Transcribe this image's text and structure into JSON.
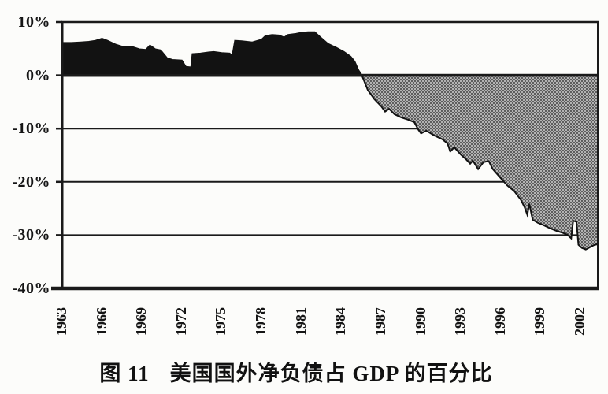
{
  "figure": {
    "caption_prefix": "图 11",
    "caption_title": "美国国外净负债占 GDP 的百分比"
  },
  "chart_data": {
    "type": "area",
    "title": "美国国外净负债占 GDP 的百分比",
    "xlabel": "",
    "ylabel": "",
    "xlim": [
      1963,
      2003.3
    ],
    "ylim": [
      -40,
      10
    ],
    "grid": "horizontal",
    "legend": "none",
    "x_ticks": [
      {
        "year": 1963,
        "label": "1963"
      },
      {
        "year": 1966,
        "label": "1966"
      },
      {
        "year": 1969,
        "label": "1969"
      },
      {
        "year": 1972,
        "label": "1972"
      },
      {
        "year": 1975,
        "label": "1975"
      },
      {
        "year": 1978,
        "label": "1978"
      },
      {
        "year": 1981,
        "label": "1981"
      },
      {
        "year": 1984,
        "label": "1984"
      },
      {
        "year": 1987,
        "label": "1987"
      },
      {
        "year": 1990,
        "label": "1990"
      },
      {
        "year": 1993,
        "label": "1993"
      },
      {
        "year": 1996,
        "label": "1996"
      },
      {
        "year": 1999,
        "label": "1999"
      },
      {
        "year": 2002,
        "label": "2002"
      }
    ],
    "y_ticks": [
      {
        "value": 10,
        "label": "10%"
      },
      {
        "value": 0,
        "label": "0%"
      },
      {
        "value": -10,
        "label": "-10%"
      },
      {
        "value": -20,
        "label": "-20%"
      },
      {
        "value": -30,
        "label": "-30%"
      },
      {
        "value": -40,
        "label": "-40%"
      }
    ],
    "series": [
      {
        "name": "美国国外净负债占GDP百分比",
        "unit": "% of GDP",
        "points": [
          [
            1963,
            6.1
          ],
          [
            1963.7,
            6.1
          ],
          [
            1964.4,
            6.2
          ],
          [
            1965,
            6.3
          ],
          [
            1965.5,
            6.5
          ],
          [
            1966,
            6.9
          ],
          [
            1966.4,
            6.5
          ],
          [
            1967,
            5.8
          ],
          [
            1967.5,
            5.4
          ],
          [
            1968.3,
            5.3
          ],
          [
            1968.8,
            4.9
          ],
          [
            1969.3,
            4.8
          ],
          [
            1969.6,
            5.6
          ],
          [
            1970,
            4.9
          ],
          [
            1970.4,
            4.7
          ],
          [
            1970.9,
            3.2
          ],
          [
            1971.3,
            2.9
          ],
          [
            1972,
            2.8
          ],
          [
            1972.3,
            1.6
          ],
          [
            1972.7,
            1.5
          ],
          [
            1972.8,
            4.0
          ],
          [
            1973.4,
            4.1
          ],
          [
            1974,
            4.3
          ],
          [
            1974.4,
            4.4
          ],
          [
            1975,
            4.2
          ],
          [
            1975.6,
            4.1
          ],
          [
            1975.8,
            3.6
          ],
          [
            1976,
            6.5
          ],
          [
            1976.5,
            6.4
          ],
          [
            1977.3,
            6.2
          ],
          [
            1978,
            6.7
          ],
          [
            1978.3,
            7.4
          ],
          [
            1978.8,
            7.6
          ],
          [
            1979.3,
            7.5
          ],
          [
            1979.7,
            7.1
          ],
          [
            1980,
            7.6
          ],
          [
            1980.6,
            7.8
          ],
          [
            1981,
            8.0
          ],
          [
            1981.5,
            8.1
          ],
          [
            1982,
            8.1
          ],
          [
            1982.4,
            7.2
          ],
          [
            1983,
            5.9
          ],
          [
            1983.6,
            5.2
          ],
          [
            1984.2,
            4.4
          ],
          [
            1984.7,
            3.5
          ],
          [
            1985,
            2.6
          ],
          [
            1985.3,
            0.9
          ],
          [
            1985.55,
            0.0
          ],
          [
            1986,
            -2.8
          ],
          [
            1986.5,
            -4.5
          ],
          [
            1987,
            -5.8
          ],
          [
            1987.3,
            -6.8
          ],
          [
            1987.6,
            -6.3
          ],
          [
            1988,
            -7.3
          ],
          [
            1988.5,
            -7.9
          ],
          [
            1989,
            -8.3
          ],
          [
            1989.5,
            -8.8
          ],
          [
            1989.8,
            -10.2
          ],
          [
            1990,
            -10.9
          ],
          [
            1990.4,
            -10.4
          ],
          [
            1991,
            -11.3
          ],
          [
            1991.6,
            -12.0
          ],
          [
            1992,
            -12.8
          ],
          [
            1992.2,
            -14.3
          ],
          [
            1992.5,
            -13.5
          ],
          [
            1993,
            -14.9
          ],
          [
            1993.4,
            -15.8
          ],
          [
            1993.7,
            -16.6
          ],
          [
            1993.9,
            -16.0
          ],
          [
            1994.3,
            -17.6
          ],
          [
            1994.7,
            -16.3
          ],
          [
            1995.1,
            -16.1
          ],
          [
            1995.4,
            -17.6
          ],
          [
            1996,
            -19.3
          ],
          [
            1996.5,
            -20.7
          ],
          [
            1997,
            -21.7
          ],
          [
            1997.5,
            -23.3
          ],
          [
            1997.8,
            -24.8
          ],
          [
            1998,
            -26.2
          ],
          [
            1998.15,
            -24.1
          ],
          [
            1998.4,
            -27.1
          ],
          [
            1998.8,
            -27.7
          ],
          [
            1999.2,
            -28.1
          ],
          [
            1999.7,
            -28.7
          ],
          [
            2000.2,
            -29.2
          ],
          [
            2000.7,
            -29.6
          ],
          [
            2001,
            -29.9
          ],
          [
            2001.3,
            -30.6
          ],
          [
            2001.45,
            -27.3
          ],
          [
            2001.7,
            -27.5
          ],
          [
            2001.85,
            -31.8
          ],
          [
            2002.1,
            -32.4
          ],
          [
            2002.4,
            -32.7
          ],
          [
            2002.7,
            -32.3
          ],
          [
            2003,
            -31.9
          ],
          [
            2003.3,
            -31.7
          ]
        ]
      }
    ],
    "colors": {
      "positive_fill": "#121212",
      "negative_fill_base": "#b3b3b3",
      "negative_fill_dot": "#3a3a3a",
      "line": "#121212",
      "grid": "#1a1a1a",
      "background": "#fcfcfa"
    }
  }
}
